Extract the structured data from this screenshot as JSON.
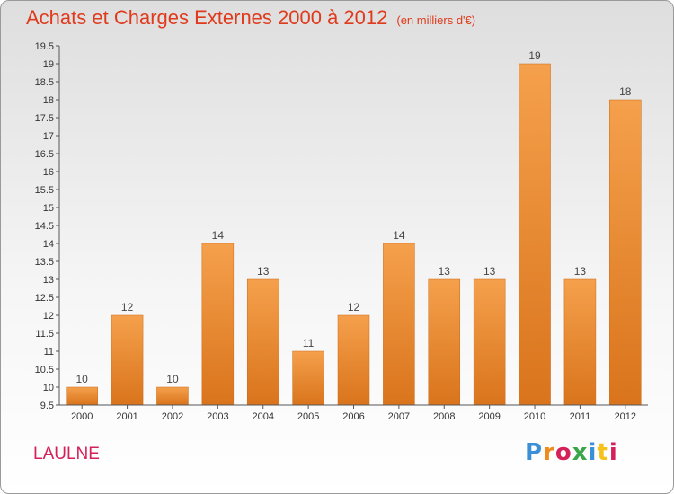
{
  "title": "Achats et Charges Externes 2000 à 2012",
  "subtitle": "(en milliers d'€)",
  "commune": "LAULNE",
  "logo": "Proxiti",
  "colors": {
    "title": "#e03a1c",
    "commune": "#d4215a",
    "bar_top": "#f5a04c",
    "bar_bottom": "#d9741c",
    "logo_letters": [
      "#3a8fd6",
      "#f08a1c",
      "#d4215a",
      "#3aa64a",
      "#3a8fd6",
      "#f5c21c",
      "#d4215a"
    ]
  },
  "chart_data": {
    "type": "bar",
    "categories": [
      "2000",
      "2001",
      "2002",
      "2003",
      "2004",
      "2005",
      "2006",
      "2007",
      "2008",
      "2009",
      "2010",
      "2011",
      "2012"
    ],
    "values": [
      10,
      12,
      10,
      14,
      13,
      11,
      12,
      14,
      13,
      13,
      19,
      13,
      18
    ],
    "data_labels": [
      "10",
      "12",
      "10",
      "14",
      "13",
      "11",
      "12",
      "14",
      "13",
      "13",
      "19",
      "13",
      "18"
    ],
    "ylim": [
      9.5,
      19.5
    ],
    "yticks": [
      "9.5",
      "10",
      "10.5",
      "11",
      "11.5",
      "12",
      "12.5",
      "13",
      "13.5",
      "14",
      "14.5",
      "15",
      "15.5",
      "16",
      "16.5",
      "17",
      "17.5",
      "18",
      "18.5",
      "19",
      "19.5"
    ],
    "grid": false,
    "legend": "none"
  }
}
